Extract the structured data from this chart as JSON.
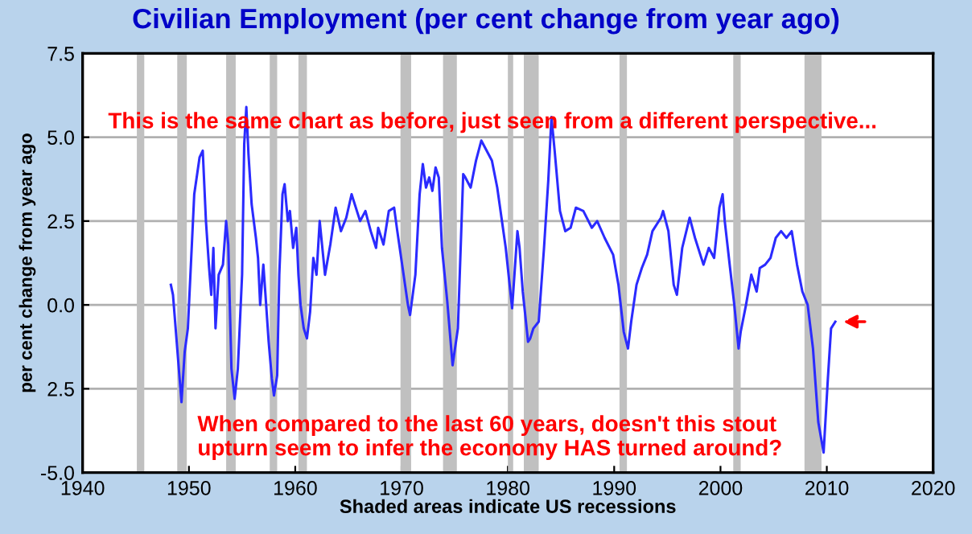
{
  "chart_data": {
    "type": "line",
    "title": "Civilian Employment (per cent change from year ago)",
    "ylabel": "per cent change from year ago",
    "xlabel": "Shaded areas indicate US recessions",
    "annotations": [
      "This is the same chart as before, just seen from a different perspective...",
      "When compared to the last 60 years, doesn't this stout\nupturn seem to infer the economy HAS turned around?"
    ],
    "series": [
      {
        "color": "#2b2bff",
        "x": [
          1948.3,
          1948.5,
          1949.3,
          1949.6,
          1949.9,
          1950.5,
          1951.0,
          1951.3,
          1951.6,
          1951.9,
          1952.1,
          1952.3,
          1952.5,
          1952.8,
          1953.2,
          1953.5,
          1953.7,
          1954.0,
          1954.3,
          1954.6,
          1955.0,
          1955.2,
          1955.4,
          1955.6,
          1955.9,
          1956.3,
          1956.5,
          1956.7,
          1957.0,
          1957.2,
          1957.5,
          1957.8,
          1958.0,
          1958.3,
          1958.5,
          1958.8,
          1959.0,
          1959.3,
          1959.5,
          1959.8,
          1960.1,
          1960.3,
          1960.5,
          1960.8,
          1961.1,
          1961.4,
          1961.7,
          1962.0,
          1962.3,
          1962.8,
          1963.3,
          1963.8,
          1964.3,
          1964.8,
          1965.3,
          1966.1,
          1966.6,
          1967.1,
          1967.6,
          1967.8,
          1968.3,
          1968.8,
          1969.3,
          1969.6,
          1970.1,
          1970.6,
          1970.8,
          1971.3,
          1971.7,
          1972.0,
          1972.3,
          1972.6,
          1972.9,
          1973.2,
          1973.5,
          1973.8,
          1974.3,
          1974.8,
          1975.3,
          1975.8,
          1976.0,
          1976.5,
          1977.0,
          1977.5,
          1978.0,
          1978.5,
          1979.0,
          1979.4,
          1979.8,
          1980.4,
          1980.9,
          1981.1,
          1981.4,
          1981.9,
          1982.1,
          1982.4,
          1982.9,
          1983.4,
          1983.8,
          1984.1,
          1984.4,
          1984.9,
          1985.4,
          1985.9,
          1986.4,
          1987.1,
          1987.9,
          1988.4,
          1989.1,
          1989.9,
          1990.4,
          1990.9,
          1991.3,
          1991.6,
          1992.1,
          1992.6,
          1993.1,
          1993.6,
          1994.4,
          1994.6,
          1995.1,
          1995.6,
          1995.9,
          1996.4,
          1997.1,
          1997.6,
          1998.4,
          1998.9,
          1999.4,
          1999.9,
          2000.2,
          2000.4,
          2000.9,
          2001.3,
          2001.7,
          2001.9,
          2002.4,
          2002.9,
          2003.4,
          2003.7,
          2004.2,
          2004.7,
          2005.2,
          2005.7,
          2006.2,
          2006.7,
          2007.2,
          2007.7,
          2008.2,
          2008.7,
          2009.2,
          2009.7,
          2010.1,
          2010.4,
          2010.8
        ],
        "values": [
          0.6,
          0.3,
          -2.9,
          -1.4,
          -0.7,
          3.3,
          4.4,
          4.6,
          2.5,
          1.1,
          0.3,
          1.7,
          -0.7,
          0.9,
          1.2,
          2.5,
          1.8,
          -1.9,
          -2.8,
          -1.9,
          0.9,
          4.8,
          5.9,
          4.5,
          3.0,
          2.0,
          1.4,
          0.0,
          1.2,
          0.3,
          -1.1,
          -2.2,
          -2.7,
          -2.1,
          0.9,
          3.3,
          3.6,
          2.5,
          2.8,
          1.7,
          2.3,
          0.9,
          0.0,
          -0.7,
          -1.0,
          -0.2,
          1.4,
          0.9,
          2.5,
          0.9,
          1.8,
          2.9,
          2.2,
          2.6,
          3.3,
          2.5,
          2.8,
          2.2,
          1.7,
          2.3,
          1.8,
          2.8,
          2.9,
          2.2,
          1.1,
          0.0,
          -0.3,
          0.9,
          3.3,
          4.2,
          3.5,
          3.8,
          3.4,
          4.1,
          3.8,
          1.7,
          0.1,
          -1.8,
          -0.7,
          3.9,
          3.8,
          3.5,
          4.3,
          4.9,
          4.6,
          4.3,
          3.5,
          2.6,
          1.7,
          -0.1,
          2.2,
          1.7,
          0.4,
          -1.1,
          -1.0,
          -0.7,
          -0.5,
          1.7,
          3.7,
          5.6,
          4.6,
          2.8,
          2.2,
          2.3,
          2.9,
          2.8,
          2.3,
          2.5,
          2.0,
          1.5,
          0.6,
          -0.8,
          -1.3,
          -0.5,
          0.6,
          1.1,
          1.5,
          2.2,
          2.6,
          2.8,
          2.2,
          0.6,
          0.3,
          1.7,
          2.6,
          2.0,
          1.2,
          1.7,
          1.4,
          2.9,
          3.3,
          2.5,
          1.1,
          0.0,
          -1.3,
          -0.8,
          0.0,
          0.9,
          0.4,
          1.1,
          1.2,
          1.4,
          2.0,
          2.2,
          2.0,
          2.2,
          1.2,
          0.4,
          0.0,
          -1.3,
          -3.5,
          -4.4,
          -2.2,
          -0.7,
          -0.5
        ]
      }
    ],
    "xlim": [
      1940,
      2020
    ],
    "xticks": [
      1940,
      1950,
      1960,
      1970,
      1980,
      1990,
      2000,
      2010,
      2020
    ],
    "ylim": [
      -5.0,
      7.5
    ],
    "yticks": [
      {
        "value": -5.0,
        "label": "-5.0"
      },
      {
        "value": -2.5,
        "label": "2.5"
      },
      {
        "value": 0.0,
        "label": "0.0"
      },
      {
        "value": 2.5,
        "label": "2.5"
      },
      {
        "value": 5.0,
        "label": "5.0"
      },
      {
        "value": 7.5,
        "label": "7.5"
      }
    ],
    "grid": "y",
    "bands": [
      {
        "axis": "x",
        "from": 1945.1,
        "to": 1945.8,
        "color": "#c0c0c0"
      },
      {
        "axis": "x",
        "from": 1948.9,
        "to": 1949.8,
        "color": "#c0c0c0"
      },
      {
        "axis": "x",
        "from": 1953.5,
        "to": 1954.4,
        "color": "#c0c0c0"
      },
      {
        "axis": "x",
        "from": 1957.6,
        "to": 1958.3,
        "color": "#c0c0c0"
      },
      {
        "axis": "x",
        "from": 1960.3,
        "to": 1961.1,
        "color": "#c0c0c0"
      },
      {
        "axis": "x",
        "from": 1969.9,
        "to": 1970.9,
        "color": "#c0c0c0"
      },
      {
        "axis": "x",
        "from": 1973.9,
        "to": 1975.2,
        "color": "#c0c0c0"
      },
      {
        "axis": "x",
        "from": 1980.0,
        "to": 1980.5,
        "color": "#c0c0c0"
      },
      {
        "axis": "x",
        "from": 1981.5,
        "to": 1982.9,
        "color": "#c0c0c0"
      },
      {
        "axis": "x",
        "from": 1990.5,
        "to": 1991.2,
        "color": "#c0c0c0"
      },
      {
        "axis": "x",
        "from": 2001.2,
        "to": 2001.9,
        "color": "#c0c0c0"
      },
      {
        "axis": "x",
        "from": 2007.9,
        "to": 2009.5,
        "color": "#c0c0c0"
      }
    ]
  }
}
